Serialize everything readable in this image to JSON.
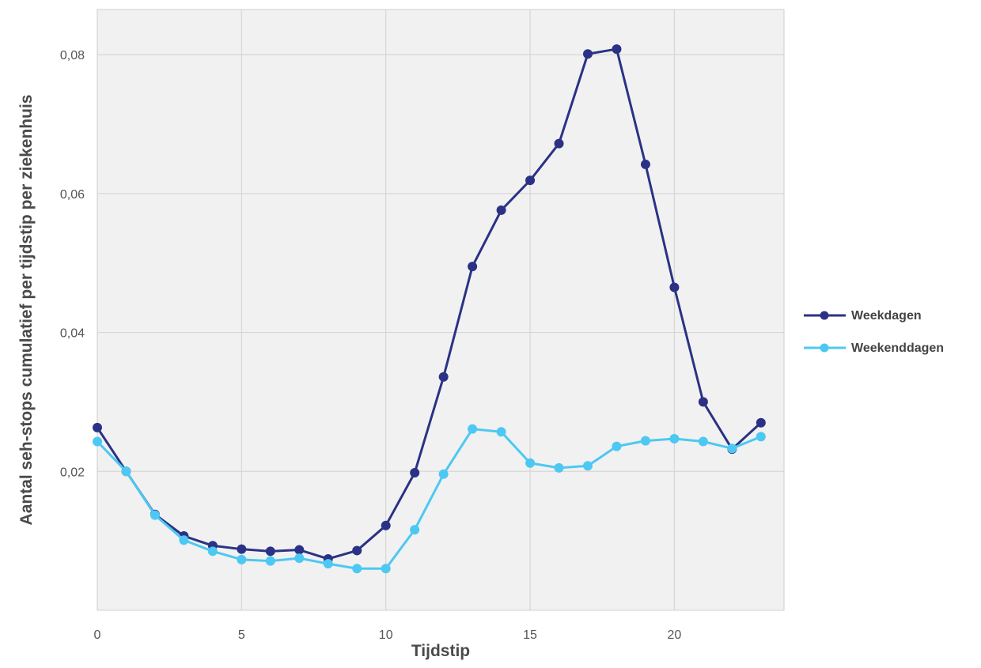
{
  "chart_data": {
    "type": "line",
    "title": "",
    "xlabel": "Tijdstip",
    "ylabel": "Aantal  seh-stops cumulatief per tijdstip per ziekenhuis",
    "xlim": [
      0,
      23.8
    ],
    "ylim": [
      0.0,
      0.0865
    ],
    "x_ticks": [
      0,
      5,
      10,
      15,
      20
    ],
    "x_tick_labels": [
      "0",
      "5",
      "10",
      "15",
      "20"
    ],
    "y_ticks": [
      0.02,
      0.04,
      0.06,
      0.08
    ],
    "y_tick_labels": [
      "0,02",
      "0,04",
      "0,06",
      "0,08"
    ],
    "grid": true,
    "legend_position": "right",
    "x": [
      0,
      1,
      2,
      3,
      4,
      5,
      6,
      7,
      8,
      9,
      10,
      11,
      12,
      13,
      14,
      15,
      16,
      17,
      18,
      19,
      20,
      21,
      22,
      23
    ],
    "series": [
      {
        "name": "Weekdagen",
        "color": "#2b3285",
        "values": [
          0.0263,
          0.02,
          0.0138,
          0.0107,
          0.0093,
          0.0088,
          0.0085,
          0.0087,
          0.0074,
          0.0086,
          0.0122,
          0.0198,
          0.0336,
          0.0495,
          0.0576,
          0.0619,
          0.0672,
          0.0801,
          0.0808,
          0.0642,
          0.0465,
          0.03,
          0.0232,
          0.027
        ]
      },
      {
        "name": "Weekenddagen",
        "color": "#4dc8f2",
        "values": [
          0.0243,
          0.02,
          0.0137,
          0.0101,
          0.0085,
          0.0073,
          0.0071,
          0.0075,
          0.0067,
          0.006,
          0.006,
          0.0116,
          0.0196,
          0.0261,
          0.0257,
          0.0212,
          0.0205,
          0.0208,
          0.0236,
          0.0244,
          0.0247,
          0.0243,
          0.0233,
          0.025
        ]
      }
    ]
  }
}
